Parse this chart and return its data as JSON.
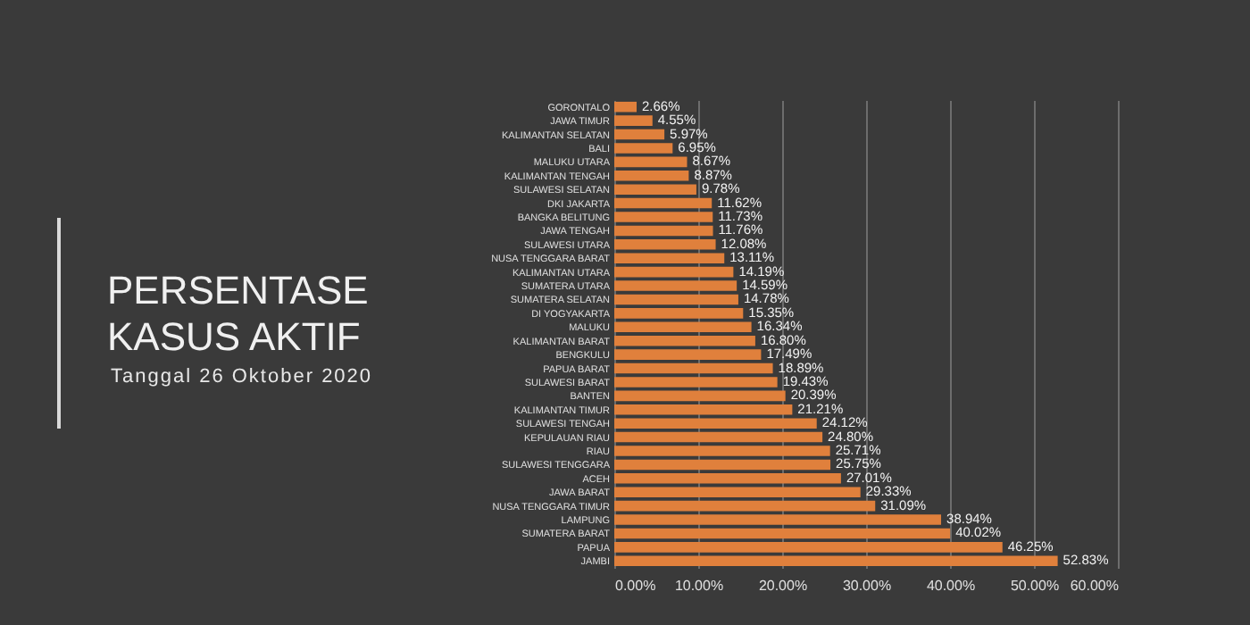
{
  "chart_data": {
    "type": "bar",
    "orientation": "horizontal",
    "title": "PERSENTASE KASUS AKTIF",
    "subtitle": "Tanggal 26 Oktober 2020",
    "categories": [
      "GORONTALO",
      "JAWA TIMUR",
      "KALIMANTAN SELATAN",
      "BALI",
      "MALUKU UTARA",
      "KALIMANTAN TENGAH",
      "SULAWESI SELATAN",
      "DKI JAKARTA",
      "BANGKA BELITUNG",
      "JAWA TENGAH",
      "SULAWESI UTARA",
      "NUSA TENGGARA BARAT",
      "KALIMANTAN UTARA",
      "SUMATERA UTARA",
      "SUMATERA SELATAN",
      "DI YOGYAKARTA",
      "MALUKU",
      "KALIMANTAN BARAT",
      "BENGKULU",
      "PAPUA BARAT",
      "SULAWESI BARAT",
      "BANTEN",
      "KALIMANTAN TIMUR",
      "SULAWESI TENGAH",
      "KEPULAUAN RIAU",
      "RIAU",
      "SULAWESI TENGGARA",
      "ACEH",
      "JAWA BARAT",
      "NUSA TENGGARA TIMUR",
      "LAMPUNG",
      "SUMATERA BARAT",
      "PAPUA",
      "JAMBI"
    ],
    "values": [
      2.66,
      4.55,
      5.97,
      6.95,
      8.67,
      8.87,
      9.78,
      11.62,
      11.73,
      11.76,
      12.08,
      13.11,
      14.19,
      14.59,
      14.78,
      15.35,
      16.34,
      16.8,
      17.49,
      18.89,
      19.43,
      20.39,
      21.21,
      24.12,
      24.8,
      25.71,
      25.75,
      27.01,
      29.33,
      31.09,
      38.94,
      40.02,
      46.25,
      52.83
    ],
    "value_labels": [
      "2.66%",
      "4.55%",
      "5.97%",
      "6.95%",
      "8.67%",
      "8.87%",
      "9.78%",
      "11.62%",
      "11.73%",
      "11.76%",
      "12.08%",
      "13.11%",
      "14.19%",
      "14.59%",
      "14.78%",
      "15.35%",
      "16.34%",
      "16.80%",
      "17.49%",
      "18.89%",
      "19.43%",
      "20.39%",
      "21.21%",
      "24.12%",
      "24.80%",
      "25.71%",
      "25.75%",
      "27.01%",
      "29.33%",
      "31.09%",
      "38.94%",
      "40.02%",
      "46.25%",
      "52.83%"
    ],
    "color": "#e0803c",
    "xlim": [
      0,
      60
    ],
    "xticks": [
      {
        "value": 0,
        "label": "0.00%"
      },
      {
        "value": 10,
        "label": "10.00%"
      },
      {
        "value": 20,
        "label": "20.00%"
      },
      {
        "value": 30,
        "label": "30.00%"
      },
      {
        "value": 40,
        "label": "40.00%"
      },
      {
        "value": 50,
        "label": "50.00%"
      },
      {
        "value": 60,
        "label": "60.00%"
      }
    ],
    "grid": "x"
  }
}
